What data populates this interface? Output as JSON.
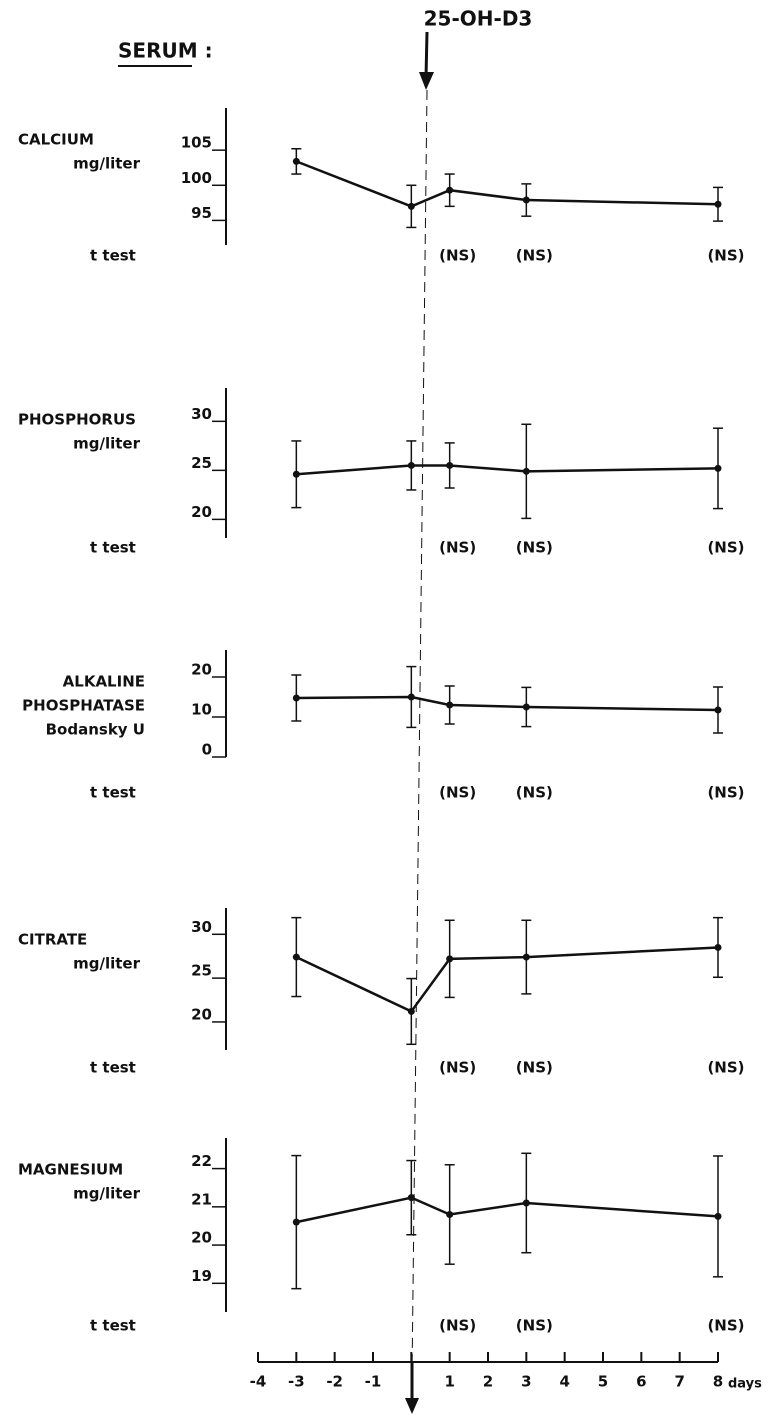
{
  "title": "SERUM :",
  "annotation": "25-OH-D3",
  "x_axis": {
    "xlim": [
      -4,
      8
    ],
    "xticks": [
      -4,
      -3,
      -2,
      -1,
      {
        "value": 0,
        "label": null
      },
      1,
      2,
      3,
      4,
      5,
      6,
      7,
      8
    ],
    "label": "days"
  },
  "chart_data": [
    {
      "type": "line",
      "label": [
        "CALCIUM",
        "mg/liter"
      ],
      "test_label": "t test",
      "x": [
        -3,
        0,
        1,
        3,
        8
      ],
      "values": [
        103.4,
        97,
        99.3,
        97.9,
        97.3
      ],
      "errors": [
        1.8,
        3,
        2.3,
        2.3,
        2.4
      ],
      "significance": [
        null,
        null,
        "(NS)",
        "(NS)",
        "(NS)"
      ],
      "ylim": [
        91.5,
        111
      ],
      "yticks": [
        95,
        100,
        105
      ]
    },
    {
      "type": "line",
      "label": [
        "PHOSPHORUS",
        "mg/liter"
      ],
      "test_label": "t test",
      "x": [
        -3,
        0,
        1,
        3,
        8
      ],
      "values": [
        24.6,
        25.5,
        25.5,
        24.9,
        25.2
      ],
      "errors": [
        3.4,
        2.5,
        2.3,
        4.8,
        4.1
      ],
      "significance": [
        null,
        null,
        "(NS)",
        "(NS)",
        "(NS)"
      ],
      "ylim": [
        18.1,
        33.4
      ],
      "yticks": [
        20,
        25,
        30
      ]
    },
    {
      "type": "line",
      "label": [
        "ALKALINE",
        "PHOSPHATASE",
        "Bodansky U"
      ],
      "test_label": "t test",
      "x": [
        -3,
        0,
        1,
        3,
        8
      ],
      "values": [
        14.75,
        15,
        13,
        12.5,
        11.75
      ],
      "errors": [
        5.75,
        7.6,
        4.75,
        4.9,
        5.75
      ],
      "significance": [
        null,
        null,
        "(NS)",
        "(NS)",
        "(NS)"
      ],
      "ylim": [
        0,
        26.75
      ],
      "yticks": [
        0,
        10,
        20
      ]
    },
    {
      "type": "line",
      "label": [
        "CITRATE",
        "mg/liter"
      ],
      "test_label": "t test",
      "x": [
        -3,
        0,
        1,
        3,
        8
      ],
      "values": [
        27.4,
        21.2,
        27.2,
        27.4,
        28.5
      ],
      "errors": [
        4.5,
        3.75,
        4.4,
        4.2,
        3.4
      ],
      "significance": [
        null,
        null,
        "(NS)",
        "(NS)",
        "(NS)"
      ],
      "ylim": [
        16.8,
        33
      ],
      "yticks": [
        20,
        25,
        30
      ]
    },
    {
      "type": "line",
      "label": [
        "MAGNESIUM",
        "mg/liter"
      ],
      "test_label": "t test",
      "x": [
        -3,
        0,
        1,
        3,
        8
      ],
      "values": [
        20.6,
        21.24,
        20.8,
        21.1,
        20.75
      ],
      "errors": [
        1.74,
        0.97,
        1.3,
        1.3,
        1.58
      ],
      "significance": [
        null,
        null,
        "(NS)",
        "(NS)",
        "(NS)"
      ],
      "ylim": [
        18.25,
        22.8
      ],
      "yticks": [
        19,
        20,
        21,
        22
      ]
    }
  ]
}
